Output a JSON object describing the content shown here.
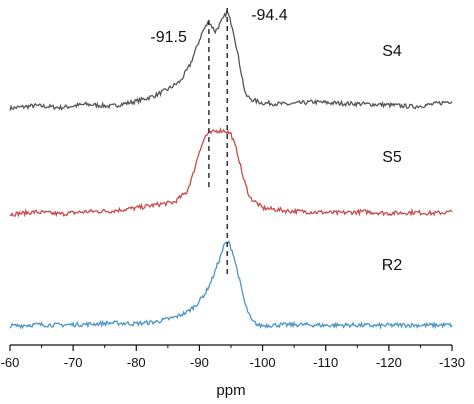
{
  "chart_data": {
    "type": "line",
    "xlabel": "ppm",
    "xlim": [
      -60,
      -130
    ],
    "x_ticks": [
      -60,
      -70,
      -80,
      -90,
      -100,
      -110,
      -120,
      -130
    ],
    "series": [
      {
        "name": "S4",
        "color": "#555555",
        "points": [
          [
            -60,
            1.1
          ],
          [
            -64,
            1.9
          ],
          [
            -68,
            1.3
          ],
          [
            -72,
            2.3
          ],
          [
            -76,
            1.7
          ],
          [
            -80,
            3.2
          ],
          [
            -83,
            4.9
          ],
          [
            -85,
            6.8
          ],
          [
            -87,
            9.2
          ],
          [
            -88.5,
            14
          ],
          [
            -89.5,
            19
          ],
          [
            -90.5,
            24
          ],
          [
            -91.5,
            27
          ],
          [
            -92.5,
            24
          ],
          [
            -93.5,
            27
          ],
          [
            -94.4,
            30
          ],
          [
            -95.3,
            25
          ],
          [
            -96.3,
            15
          ],
          [
            -97.3,
            5
          ],
          [
            -98.5,
            3.5
          ],
          [
            -100,
            2.7
          ],
          [
            -104,
            2.3
          ],
          [
            -108,
            3
          ],
          [
            -112,
            2.6
          ],
          [
            -116,
            2.4
          ],
          [
            -120,
            2.1
          ],
          [
            -124,
            1.6
          ],
          [
            -127,
            2.3
          ],
          [
            -130,
            3.3
          ]
        ]
      },
      {
        "name": "S5",
        "color": "#c94a4a",
        "points": [
          [
            -60,
            0.5
          ],
          [
            -64,
            1.2
          ],
          [
            -68,
            0.6
          ],
          [
            -72,
            1.3
          ],
          [
            -76,
            1.5
          ],
          [
            -80,
            2.4
          ],
          [
            -83,
            3.3
          ],
          [
            -86,
            4.1
          ],
          [
            -88,
            7.2
          ],
          [
            -89,
            12.5
          ],
          [
            -90,
            19.5
          ],
          [
            -91,
            24
          ],
          [
            -92,
            25
          ],
          [
            -93,
            25.5
          ],
          [
            -94,
            25.5
          ],
          [
            -95,
            24.5
          ],
          [
            -96,
            19
          ],
          [
            -97,
            11
          ],
          [
            -98,
            5.5
          ],
          [
            -100,
            2.4
          ],
          [
            -104,
            1.5
          ],
          [
            -108,
            1.2
          ],
          [
            -112,
            0.9
          ],
          [
            -116,
            1.3
          ],
          [
            -120,
            0.8
          ],
          [
            -124,
            1.1
          ],
          [
            -127,
            0.8
          ],
          [
            -130,
            1.2
          ]
        ]
      },
      {
        "name": "R2",
        "color": "#4d96c6",
        "points": [
          [
            -60,
            0
          ],
          [
            -64,
            0.4
          ],
          [
            -68,
            0.3
          ],
          [
            -72,
            0.5
          ],
          [
            -76,
            0.9
          ],
          [
            -80,
            0.7
          ],
          [
            -83,
            1.2
          ],
          [
            -86,
            2.5
          ],
          [
            -88,
            4.1
          ],
          [
            -89.5,
            6.3
          ],
          [
            -91,
            10
          ],
          [
            -92,
            14
          ],
          [
            -93,
            19
          ],
          [
            -94,
            24.5
          ],
          [
            -94.6,
            25
          ],
          [
            -95.3,
            22
          ],
          [
            -96.3,
            14
          ],
          [
            -97.3,
            6
          ],
          [
            -98.3,
            1.5
          ],
          [
            -99.5,
            0.1
          ],
          [
            -102,
            0.3
          ],
          [
            -106,
            0.4
          ],
          [
            -110,
            0.2
          ],
          [
            -114,
            0.3
          ],
          [
            -118,
            0.1
          ],
          [
            -122,
            0.3
          ],
          [
            -126,
            0.2
          ],
          [
            -130,
            0.3
          ]
        ]
      }
    ],
    "annotations": [
      {
        "text": "-91.5",
        "x": -91.5
      },
      {
        "text": "-94.4",
        "x": -94.4
      }
    ],
    "ref_lines": [
      -91.5,
      -94.4
    ],
    "grid": false
  }
}
